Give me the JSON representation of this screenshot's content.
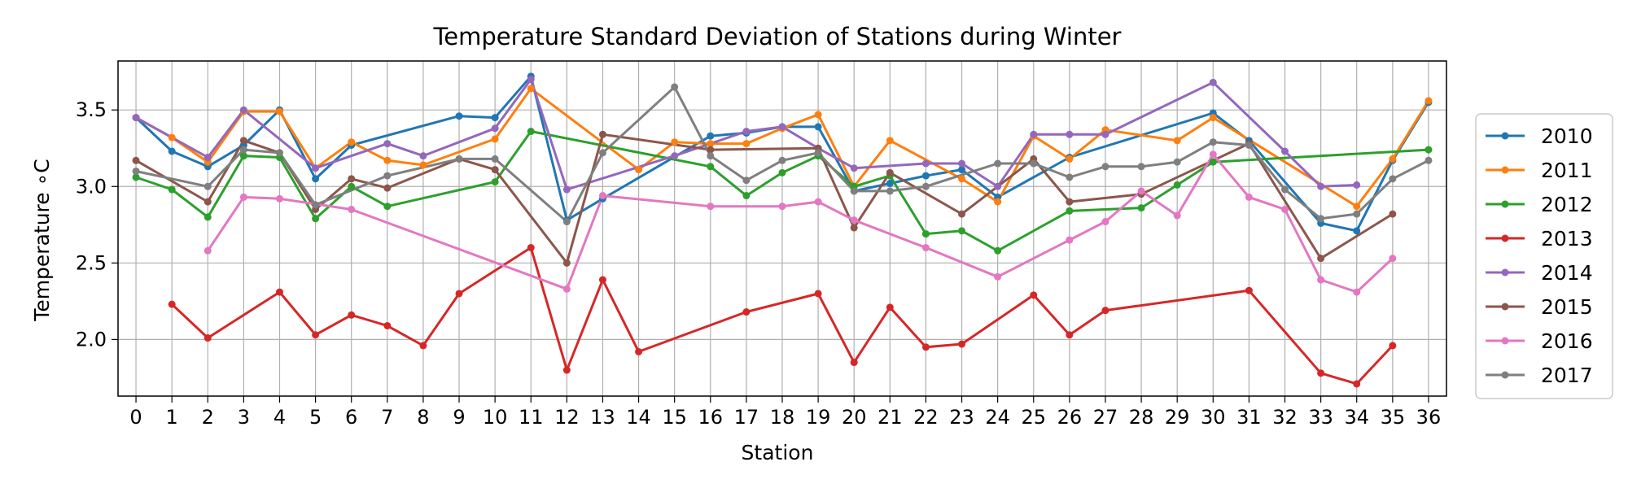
{
  "chart_data": {
    "type": "line",
    "title": "Temperature Standard Deviation of Stations during Winter",
    "xlabel": "Station",
    "ylabel": "Temperature  ∘C",
    "x": [
      0,
      1,
      2,
      3,
      4,
      5,
      6,
      7,
      8,
      9,
      10,
      11,
      12,
      13,
      14,
      15,
      16,
      17,
      18,
      19,
      20,
      21,
      22,
      23,
      24,
      25,
      26,
      27,
      28,
      29,
      30,
      31,
      32,
      33,
      34,
      35,
      36
    ],
    "xlim": [
      -0.5,
      36.5
    ],
    "ylim": [
      1.63,
      3.82
    ],
    "yticks": [
      2.0,
      2.5,
      3.0,
      3.5
    ],
    "ytick_labels": [
      "2.0",
      "2.5",
      "3.0",
      "3.5"
    ],
    "grid": true,
    "legend_position": "outside-right",
    "series": [
      {
        "name": "2010",
        "color": "#1f77b4",
        "values": [
          3.45,
          3.23,
          3.13,
          3.27,
          3.5,
          3.05,
          3.27,
          null,
          null,
          3.46,
          3.45,
          3.72,
          2.78,
          2.92,
          null,
          null,
          3.33,
          3.35,
          3.39,
          3.39,
          2.97,
          3.02,
          3.07,
          3.11,
          2.93,
          null,
          3.19,
          null,
          null,
          null,
          3.48,
          3.3,
          null,
          2.76,
          2.71,
          3.17,
          3.55
        ]
      },
      {
        "name": "2011",
        "color": "#ff7f0e",
        "values": [
          3.45,
          3.32,
          3.16,
          3.49,
          3.49,
          3.12,
          3.29,
          3.17,
          3.14,
          null,
          3.31,
          3.64,
          null,
          null,
          3.11,
          3.29,
          3.28,
          3.28,
          3.38,
          3.47,
          3.0,
          3.3,
          null,
          3.05,
          2.9,
          3.33,
          3.18,
          3.37,
          null,
          3.3,
          3.45,
          null,
          null,
          null,
          2.87,
          3.18,
          3.56
        ]
      },
      {
        "name": "2012",
        "color": "#2ca02c",
        "values": [
          3.06,
          2.98,
          2.8,
          3.2,
          3.19,
          2.79,
          3.0,
          2.87,
          null,
          null,
          3.03,
          3.36,
          null,
          null,
          null,
          null,
          3.13,
          2.94,
          3.09,
          3.2,
          3.0,
          3.07,
          2.69,
          2.71,
          2.58,
          null,
          2.84,
          null,
          2.86,
          3.01,
          3.16,
          null,
          null,
          null,
          null,
          null,
          3.24
        ]
      },
      {
        "name": "2013",
        "color": "#d62728",
        "values": [
          null,
          2.23,
          2.01,
          null,
          2.31,
          2.03,
          2.16,
          2.09,
          1.96,
          2.3,
          null,
          2.6,
          1.8,
          2.39,
          1.92,
          null,
          null,
          2.18,
          null,
          2.3,
          1.85,
          2.21,
          1.95,
          1.97,
          null,
          2.29,
          2.03,
          2.19,
          null,
          null,
          null,
          2.32,
          null,
          1.78,
          1.71,
          1.96,
          null
        ]
      },
      {
        "name": "2014",
        "color": "#9467bd",
        "values": [
          3.45,
          null,
          3.19,
          3.5,
          null,
          3.12,
          null,
          3.28,
          3.2,
          null,
          3.38,
          3.7,
          2.98,
          null,
          null,
          3.2,
          null,
          3.36,
          3.39,
          3.25,
          3.12,
          null,
          3.15,
          3.15,
          3.0,
          3.34,
          3.34,
          3.34,
          null,
          null,
          3.68,
          null,
          3.23,
          3.0,
          3.01,
          null,
          null
        ]
      },
      {
        "name": "2015",
        "color": "#8c564b",
        "values": [
          3.17,
          null,
          2.9,
          3.3,
          3.22,
          2.85,
          3.05,
          2.99,
          null,
          3.18,
          3.11,
          null,
          2.5,
          3.34,
          null,
          null,
          3.24,
          null,
          null,
          3.25,
          2.73,
          3.09,
          null,
          2.82,
          null,
          3.18,
          2.9,
          null,
          2.95,
          null,
          null,
          3.28,
          null,
          2.53,
          null,
          2.82,
          null
        ]
      },
      {
        "name": "2016",
        "color": "#e377c2",
        "values": [
          null,
          null,
          2.58,
          2.93,
          2.92,
          null,
          2.85,
          null,
          null,
          null,
          null,
          null,
          2.33,
          2.94,
          null,
          null,
          2.87,
          null,
          2.87,
          2.9,
          2.78,
          null,
          2.6,
          null,
          2.41,
          null,
          2.65,
          2.77,
          2.97,
          2.81,
          3.21,
          2.93,
          2.85,
          2.39,
          2.31,
          2.53,
          null
        ]
      },
      {
        "name": "2017",
        "color": "#7f7f7f",
        "values": [
          3.1,
          null,
          3.0,
          3.24,
          3.22,
          2.88,
          null,
          3.07,
          null,
          3.18,
          3.18,
          null,
          2.77,
          3.22,
          null,
          3.65,
          3.2,
          3.04,
          3.17,
          3.22,
          2.97,
          2.97,
          3.0,
          null,
          3.15,
          3.15,
          3.06,
          3.13,
          3.13,
          3.16,
          3.29,
          3.27,
          2.98,
          2.79,
          2.82,
          3.05,
          3.17
        ]
      }
    ]
  }
}
